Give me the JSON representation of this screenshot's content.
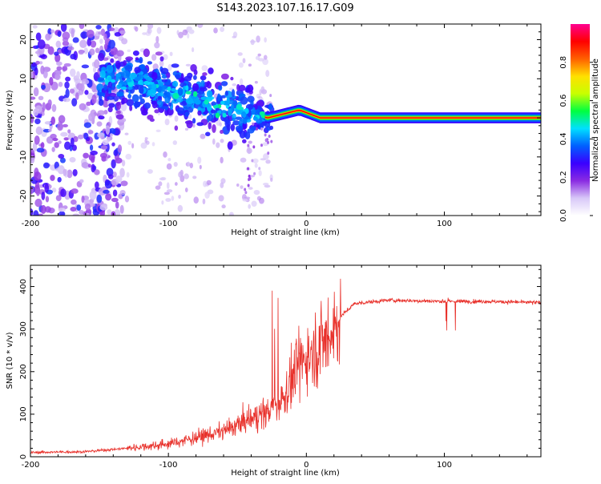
{
  "title": "S143.2023.107.16.17.G09",
  "chart_data": [
    {
      "type": "heatmap",
      "xlabel": "Height of straight line (km)",
      "ylabel": "Frequency (Hz)",
      "xlim": [
        -200,
        170
      ],
      "ylim": [
        -25,
        24
      ],
      "xticks": [
        -200,
        -100,
        0,
        100
      ],
      "yticks": [
        -20,
        -10,
        0,
        10,
        20
      ],
      "colorbar": {
        "label": "Normalized spectral amplitude",
        "range": [
          0.0,
          1.0
        ],
        "ticks": [
          0.0,
          0.2,
          0.4,
          0.6,
          0.8
        ],
        "colors": [
          "#ffffff",
          "#d8c8f8",
          "#8a2be2",
          "#3a00ff",
          "#0060ff",
          "#00e0ff",
          "#00ff40",
          "#c8ff00",
          "#ffe000",
          "#ff6000",
          "#ff0000",
          "#ff0090"
        ]
      },
      "ridge": {
        "description_points": [
          {
            "x": -150,
            "y": 10
          },
          {
            "x": -120,
            "y": 9
          },
          {
            "x": -100,
            "y": 7
          },
          {
            "x": -80,
            "y": 5
          },
          {
            "x": -60,
            "y": 3
          },
          {
            "x": -40,
            "y": 1
          },
          {
            "x": -28,
            "y": 0
          },
          {
            "x": -5,
            "y": 2
          },
          {
            "x": 10,
            "y": 0
          },
          {
            "x": 170,
            "y": 0
          }
        ]
      }
    },
    {
      "type": "line",
      "xlabel": "Height of straight line (km)",
      "ylabel": "SNR (10 * v/v)",
      "xlim": [
        -200,
        170
      ],
      "ylim": [
        0,
        450
      ],
      "xticks": [
        -200,
        -100,
        0,
        100
      ],
      "yticks": [
        0,
        100,
        200,
        300,
        400
      ],
      "series": [
        {
          "color": "#e8302a",
          "trend": {
            "x": [
              -200,
              -160,
              -130,
              -100,
              -80,
              -60,
              -40,
              -25,
              -15,
              -5,
              5,
              15,
              25,
              35,
              60,
              100,
              130,
              170
            ],
            "y": [
              10,
              12,
              20,
              30,
              45,
              60,
              90,
              110,
              150,
              220,
              250,
              280,
              330,
              360,
              368,
              365,
              365,
              362
            ]
          }
        }
      ]
    }
  ]
}
